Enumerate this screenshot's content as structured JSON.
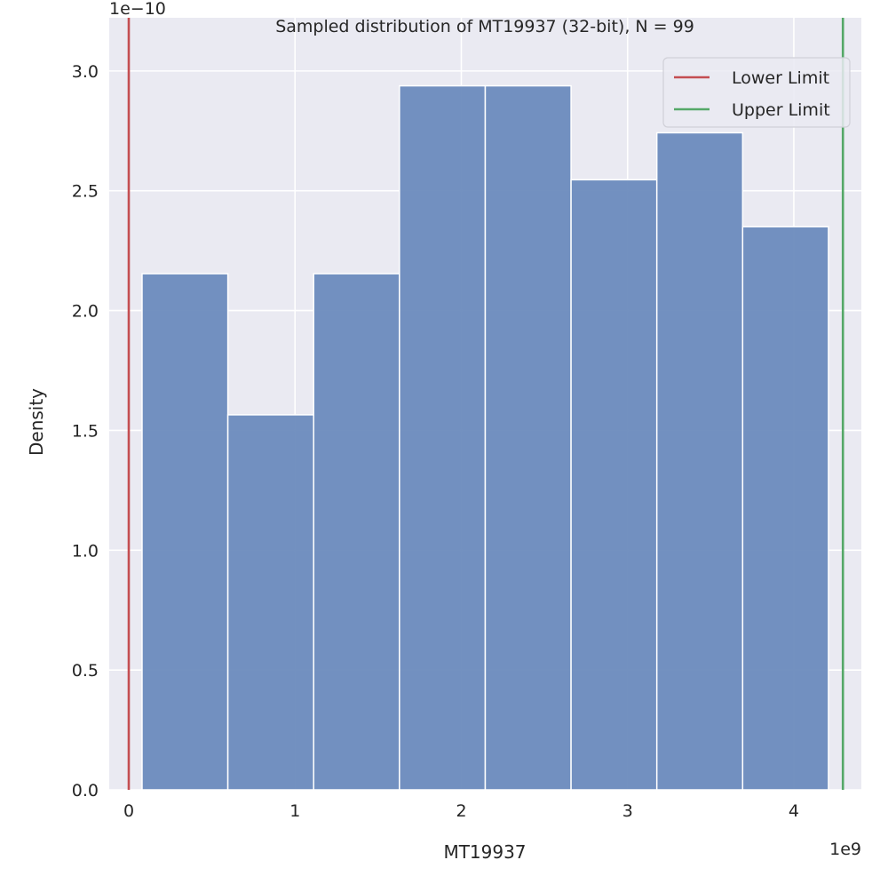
{
  "chart_data": {
    "type": "bar",
    "subtype": "histogram",
    "title": "Sampled distribution of MT19937 (32-bit), N = 99",
    "xlabel": "MT19937",
    "ylabel": "Density",
    "x_offset_label": "1e9",
    "y_offset_label": "1e−10",
    "x_scale": 1000000000.0,
    "y_scale": 1e-10,
    "xlim": [
      -0.1175,
      4.406
    ],
    "ylim": [
      0,
      3.222
    ],
    "xticks": [
      0,
      1,
      2,
      3,
      4
    ],
    "xtick_labels": [
      "0",
      "1",
      "2",
      "3",
      "4"
    ],
    "yticks": [
      0,
      0.5,
      1.0,
      1.5,
      2.0,
      2.5,
      3.0
    ],
    "ytick_labels": [
      "0.0",
      "0.5",
      "1.0",
      "1.5",
      "2.0",
      "2.5",
      "3.0"
    ],
    "grid": true,
    "bin_edges": [
      0.08,
      0.596,
      1.112,
      1.628,
      2.144,
      2.66,
      3.176,
      3.692,
      4.208
    ],
    "values": [
      2.154,
      1.565,
      2.154,
      2.938,
      2.938,
      2.546,
      2.742,
      2.35
    ],
    "bar_color": "#6b8bbd",
    "background_color": "#eaeaf2",
    "vlines": [
      {
        "name": "Lower Limit",
        "x": 0,
        "color": "#c44e52"
      },
      {
        "name": "Upper Limit",
        "x": 4.295,
        "color": "#55a868"
      }
    ],
    "legend_position": "top-right"
  }
}
